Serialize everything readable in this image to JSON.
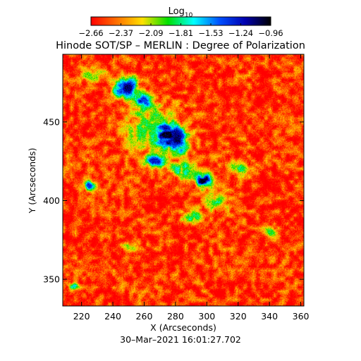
{
  "chart_data": {
    "type": "heatmap",
    "title": "Hinode SOT/SP – MERLIN : Degree of Polarization",
    "xlabel": "X (Arcseconds)",
    "ylabel": "Y (Arcseconds)",
    "xlim": [
      208,
      362
    ],
    "ylim": [
      333,
      493
    ],
    "xticks": [
      220,
      240,
      260,
      280,
      300,
      320,
      340,
      360
    ],
    "yticks": [
      350,
      400,
      450
    ],
    "colorbar": {
      "label_base": "Log",
      "label_sub": "10",
      "min": -2.66,
      "max": -0.96,
      "ticks": [
        "−2.66",
        "−2.37",
        "−2.09",
        "−1.81",
        "−1.53",
        "−1.24",
        "−0.96"
      ],
      "colors": [
        "#ff0000",
        "#ff7000",
        "#ffe000",
        "#00e000",
        "#00ffff",
        "#0050ff",
        "#0000b0",
        "#000000"
      ]
    },
    "background_value": -2.55,
    "regions": [
      {
        "x": 248,
        "y": 472,
        "rx": 7,
        "ry": 6,
        "peak": -1.1
      },
      {
        "x": 258,
        "y": 463,
        "rx": 6,
        "ry": 5,
        "peak": -1.25
      },
      {
        "x": 275,
        "y": 442,
        "rx": 9,
        "ry": 8,
        "peak": -1.0
      },
      {
        "x": 282,
        "y": 437,
        "rx": 6,
        "ry": 6,
        "peak": -1.05
      },
      {
        "x": 266,
        "y": 425,
        "rx": 6,
        "ry": 4,
        "peak": -1.3
      },
      {
        "x": 298,
        "y": 413,
        "rx": 5,
        "ry": 4,
        "peak": -0.98
      },
      {
        "x": 285,
        "y": 420,
        "rx": 8,
        "ry": 5,
        "peak": -1.7
      },
      {
        "x": 262,
        "y": 448,
        "rx": 14,
        "ry": 14,
        "peak": -1.9
      },
      {
        "x": 290,
        "y": 390,
        "rx": 6,
        "ry": 4,
        "peak": -1.75
      },
      {
        "x": 305,
        "y": 400,
        "rx": 8,
        "ry": 6,
        "peak": -1.8
      },
      {
        "x": 320,
        "y": 420,
        "rx": 7,
        "ry": 4,
        "peak": -1.85
      },
      {
        "x": 225,
        "y": 410,
        "rx": 4,
        "ry": 3,
        "peak": -1.35
      },
      {
        "x": 227,
        "y": 480,
        "rx": 8,
        "ry": 4,
        "peak": -2.0
      },
      {
        "x": 250,
        "y": 370,
        "rx": 4,
        "ry": 3,
        "peak": -2.0
      },
      {
        "x": 340,
        "y": 380,
        "rx": 4,
        "ry": 3,
        "peak": -1.9
      },
      {
        "x": 215,
        "y": 346,
        "rx": 3,
        "ry": 2,
        "peak": -1.7
      }
    ],
    "grid": false,
    "legend": "colorbar-top"
  },
  "footer": {
    "timestamp": "30–Mar–2021 16:01:27.702"
  }
}
